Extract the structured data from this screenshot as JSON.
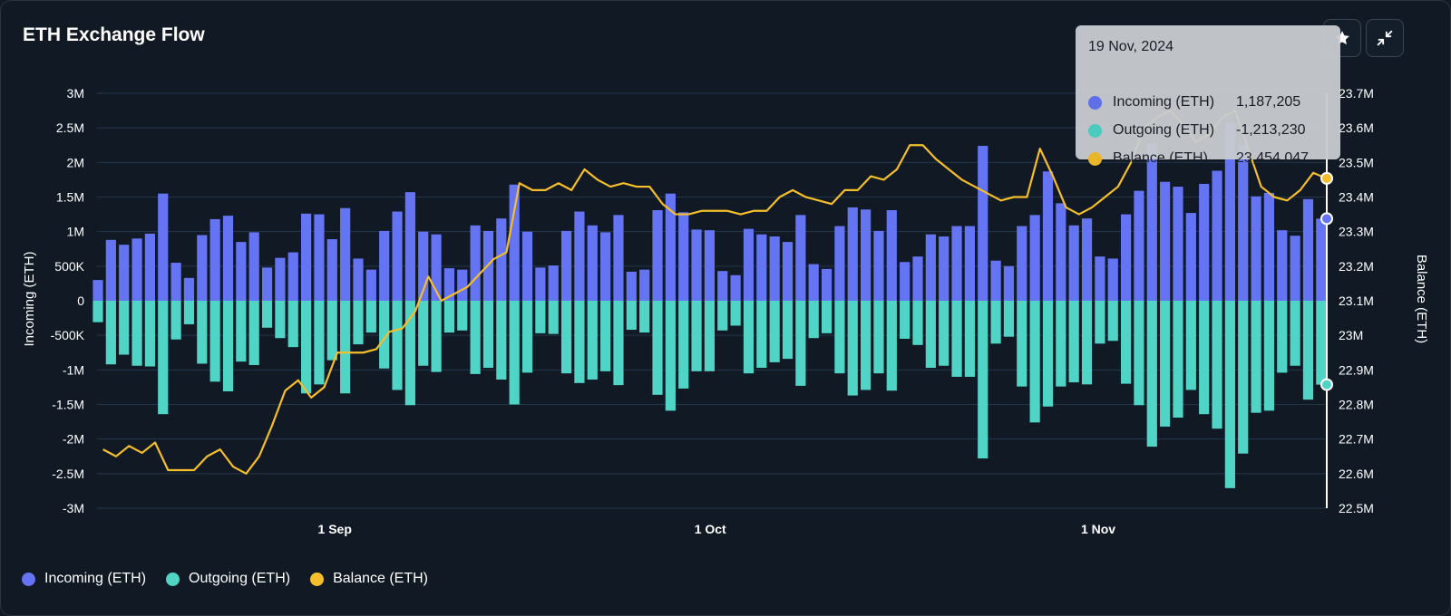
{
  "title": "ETH Exchange Flow",
  "toolbar": {
    "favorite_icon": "star-icon",
    "collapse_icon": "minimize-icon"
  },
  "colors": {
    "incoming": "#6474f2",
    "outgoing": "#4fd4c6",
    "balance": "#f5be2a",
    "grid": "#23374c",
    "background": "#111a24"
  },
  "tooltip": {
    "date": "19 Nov, 2024",
    "rows": [
      {
        "label": "Incoming (ETH)",
        "value": "1,187,205"
      },
      {
        "label": "Outgoing (ETH)",
        "value": "-1,213,230"
      },
      {
        "label": "Balance (ETH)",
        "value": "23,454,047"
      }
    ]
  },
  "legend": [
    {
      "label": "Incoming (ETH)"
    },
    {
      "label": "Outgoing (ETH)"
    },
    {
      "label": "Balance (ETH)"
    }
  ],
  "chart_data": {
    "type": "bar",
    "title": "ETH Exchange Flow",
    "xlabel": "",
    "ylabel": "Incoming (ETH)",
    "y2label": "Balance (ETH)",
    "ylim": [
      -3000000,
      3000000
    ],
    "y2lim": [
      22500000,
      23700000
    ],
    "yticks": [
      "3M",
      "2.5M",
      "2M",
      "1.5M",
      "1M",
      "500K",
      "0",
      "-500K",
      "-1M",
      "-1.5M",
      "-2M",
      "-2.5M",
      "-3M"
    ],
    "y2ticks": [
      "23.7M",
      "23.6M",
      "23.5M",
      "23.4M",
      "23.3M",
      "23.2M",
      "23.1M",
      "23M",
      "22.9M",
      "22.8M",
      "22.7M",
      "22.6M",
      "22.5M"
    ],
    "x_start": "2024-08-13",
    "x_end": "2024-11-19",
    "xticks": [
      {
        "label": "1 Sep",
        "date": "2024-09-01"
      },
      {
        "label": "1 Oct",
        "date": "2024-10-01"
      },
      {
        "label": "1 Nov",
        "date": "2024-11-01"
      }
    ],
    "grid": true,
    "legend_position": "bottom-left",
    "series": [
      {
        "name": "Incoming (ETH)",
        "axis": "left",
        "type": "bar",
        "values": [
          300000,
          880000,
          810000,
          900000,
          970000,
          1550000,
          550000,
          330000,
          950000,
          1180000,
          1230000,
          850000,
          990000,
          480000,
          620000,
          700000,
          1260000,
          1250000,
          890000,
          1340000,
          610000,
          450000,
          1010000,
          1290000,
          1570000,
          1000000,
          960000,
          470000,
          450000,
          1090000,
          1010000,
          1190000,
          1680000,
          1000000,
          480000,
          510000,
          1010000,
          1290000,
          1090000,
          990000,
          1240000,
          420000,
          450000,
          1310000,
          1550000,
          1280000,
          1030000,
          1020000,
          430000,
          370000,
          1040000,
          960000,
          930000,
          850000,
          1240000,
          530000,
          460000,
          1080000,
          1350000,
          1320000,
          1010000,
          1310000,
          560000,
          640000,
          960000,
          930000,
          1080000,
          1080000,
          2240000,
          580000,
          500000,
          1080000,
          1240000,
          1870000,
          1410000,
          1090000,
          1190000,
          640000,
          610000,
          1250000,
          1590000,
          2270000,
          1720000,
          1650000,
          1270000,
          1690000,
          1880000,
          2570000,
          2260000,
          1510000,
          1560000,
          1020000,
          940000,
          1470000,
          1187205
        ],
        "outgoing": [
          -310000,
          -920000,
          -780000,
          -940000,
          -950000,
          -1640000,
          -560000,
          -340000,
          -910000,
          -1170000,
          -1310000,
          -880000,
          -930000,
          -390000,
          -540000,
          -670000,
          -1340000,
          -1210000,
          -860000,
          -1340000,
          -630000,
          -460000,
          -980000,
          -1290000,
          -1510000,
          -940000,
          -1030000,
          -460000,
          -430000,
          -1060000,
          -970000,
          -1140000,
          -1500000,
          -1040000,
          -470000,
          -480000,
          -1050000,
          -1190000,
          -1140000,
          -1020000,
          -1220000,
          -420000,
          -460000,
          -1360000,
          -1590000,
          -1270000,
          -1020000,
          -1020000,
          -430000,
          -360000,
          -1050000,
          -970000,
          -890000,
          -840000,
          -1230000,
          -540000,
          -470000,
          -1050000,
          -1370000,
          -1290000,
          -1050000,
          -1300000,
          -550000,
          -640000,
          -970000,
          -940000,
          -1100000,
          -1100000,
          -2280000,
          -620000,
          -520000,
          -1240000,
          -1760000,
          -1530000,
          -1240000,
          -1180000,
          -1210000,
          -620000,
          -580000,
          -1200000,
          -1510000,
          -2110000,
          -1820000,
          -1690000,
          -1290000,
          -1640000,
          -1850000,
          -2710000,
          -2210000,
          -1620000,
          -1590000,
          -1040000,
          -940000,
          -1430000,
          -1213230
        ]
      },
      {
        "name": "Outgoing (ETH)",
        "axis": "left",
        "type": "bar"
      },
      {
        "name": "Balance (ETH)",
        "axis": "right",
        "type": "line",
        "values": [
          22670000,
          22650000,
          22680000,
          22660000,
          22690000,
          22610000,
          22610000,
          22610000,
          22650000,
          22670000,
          22620000,
          22600000,
          22650000,
          22740000,
          22840000,
          22870000,
          22820000,
          22850000,
          22950000,
          22950000,
          22950000,
          22960000,
          23010000,
          23020000,
          23070000,
          23170000,
          23100000,
          23120000,
          23140000,
          23180000,
          23220000,
          23240000,
          23440000,
          23420000,
          23420000,
          23440000,
          23420000,
          23480000,
          23450000,
          23430000,
          23440000,
          23430000,
          23430000,
          23380000,
          23350000,
          23350000,
          23360000,
          23360000,
          23360000,
          23350000,
          23360000,
          23360000,
          23400000,
          23420000,
          23400000,
          23390000,
          23380000,
          23420000,
          23420000,
          23460000,
          23450000,
          23480000,
          23550000,
          23550000,
          23510000,
          23480000,
          23450000,
          23430000,
          23410000,
          23390000,
          23400000,
          23400000,
          23540000,
          23460000,
          23370000,
          23350000,
          23370000,
          23400000,
          23430000,
          23500000,
          23600000,
          23630000,
          23650000,
          23610000,
          23560000,
          23580000,
          23630000,
          23650000,
          23540000,
          23430000,
          23400000,
          23390000,
          23420000,
          23470000,
          23454047
        ]
      }
    ]
  }
}
